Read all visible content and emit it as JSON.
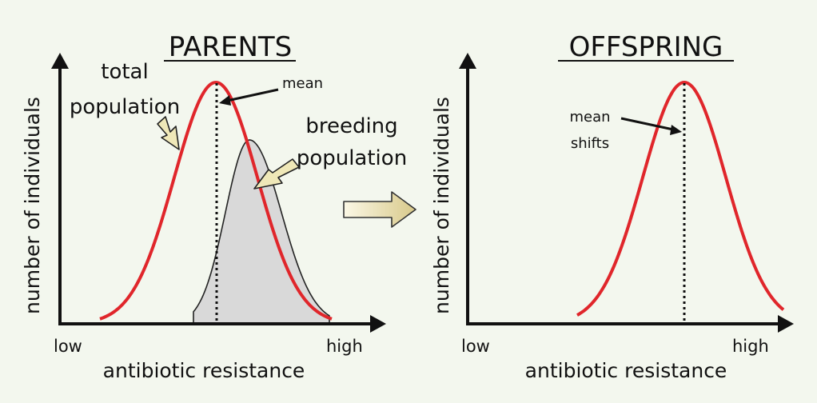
{
  "parents": {
    "title": "PARENTS",
    "total_label_line1": "total",
    "total_label_line2": "population",
    "mean_label": "mean",
    "breeding_label_line1": "breeding",
    "breeding_label_line2": "population",
    "ylabel": "number of individuals",
    "xlabel": "antibiotic resistance",
    "x_low": "low",
    "x_high": "high"
  },
  "offspring": {
    "title": "OFFSPRING",
    "mean_label_line1": "mean",
    "mean_label_line2": "shifts",
    "ylabel": "number of individuals",
    "xlabel": "antibiotic resistance",
    "x_low": "low",
    "x_high": "high"
  },
  "colors": {
    "curve": "#e0262b",
    "breeding_fill": "#d9d9d9",
    "arrow_fill": "#efe8b8",
    "background": "#f3f7ee"
  },
  "icons": {
    "transition_arrow": "right-arrow-icon"
  }
}
